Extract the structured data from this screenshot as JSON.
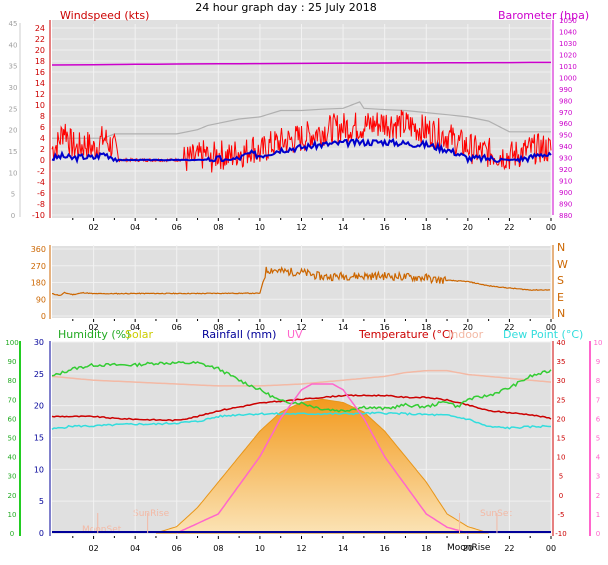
{
  "header": {
    "title": "24 hour graph day : 25 July 2018",
    "wind_label": "Windspeed (kts)",
    "baro_label": "Barometer (hpa)"
  },
  "colors": {
    "wind": "#ff0000",
    "gust_avg": "#0000cc",
    "baro": "#cc00cc",
    "gust_max": "#b0b0b0",
    "dir": "#cc6600",
    "humidity": "#33cc33",
    "solar": "#f5a623",
    "rain": "#000099",
    "uv": "#ff66cc",
    "temp": "#cc0000",
    "indoor": "#f3b9a5",
    "dew": "#33dddd"
  },
  "chart_data": [
    {
      "type": "line",
      "panel": "wind-barometer",
      "title": "24 hour graph day : 25 July 2018",
      "x_ticks": [
        "02",
        "04",
        "06",
        "08",
        "10",
        "12",
        "14",
        "16",
        "18",
        "20",
        "22",
        "00"
      ],
      "left_axis": {
        "label": "Windspeed (kts)",
        "ticks": [
          "24",
          "22",
          "20",
          "18",
          "16",
          "14",
          "12",
          "10",
          "8",
          "6",
          "4",
          "2",
          "0",
          "-2",
          "-4",
          "-6",
          "-8",
          "-10"
        ]
      },
      "left_axis_grey": {
        "ticks": [
          "45",
          "40",
          "35",
          "30",
          "25",
          "20",
          "15",
          "10",
          "5",
          "0"
        ]
      },
      "right_axis": {
        "label": "Barometer (hpa)",
        "ticks": [
          "1050",
          "1040",
          "1030",
          "1020",
          "1010",
          "1000",
          "990",
          "980",
          "970",
          "960",
          "950",
          "940",
          "930",
          "920",
          "910",
          "900",
          "890",
          "880"
        ]
      },
      "series": [
        {
          "name": "Windspeed (kts)",
          "color_key": "wind",
          "shape": [
            [
              0,
              2
            ],
            [
              0.3,
              3
            ],
            [
              0.6,
              6
            ],
            [
              0.9,
              3
            ],
            [
              1.2,
              2
            ],
            [
              1.6,
              3
            ],
            [
              2,
              2
            ],
            [
              2.5,
              4
            ],
            [
              3,
              2
            ],
            [
              3.2,
              0
            ],
            [
              3.5,
              0
            ],
            [
              5,
              0
            ],
            [
              6,
              0
            ],
            [
              7,
              0.3
            ],
            [
              7.4,
              1.2
            ],
            [
              7.6,
              0
            ],
            [
              8,
              1.2
            ],
            [
              8.5,
              0.5
            ],
            [
              9,
              1.6
            ],
            [
              9.3,
              1.2
            ],
            [
              9.6,
              2.5
            ],
            [
              10,
              1.2
            ],
            [
              10.4,
              2.5
            ],
            [
              11,
              3.2
            ],
            [
              12,
              4
            ],
            [
              13,
              5.3
            ],
            [
              14,
              6
            ],
            [
              15,
              6.2
            ],
            [
              16,
              6.8
            ],
            [
              17,
              6.4
            ],
            [
              18,
              5.4
            ],
            [
              19,
              4.4
            ],
            [
              19.6,
              3
            ],
            [
              20,
              2.4
            ],
            [
              20.5,
              1.5
            ],
            [
              21,
              1.3
            ],
            [
              22,
              0.7
            ],
            [
              22.5,
              1.2
            ],
            [
              23,
              1.9
            ],
            [
              23.6,
              2.1
            ],
            [
              24,
              1.9
            ]
          ]
        },
        {
          "name": "Average wind",
          "color_key": "gust_avg",
          "shape": [
            [
              0,
              0.3
            ],
            [
              0.5,
              0.7
            ],
            [
              1,
              0.3
            ],
            [
              1.5,
              0.6
            ],
            [
              2,
              0.4
            ],
            [
              2.5,
              1.2
            ],
            [
              3,
              0.4
            ],
            [
              3.2,
              0
            ],
            [
              4,
              0
            ],
            [
              5,
              0
            ],
            [
              6,
              0
            ],
            [
              7,
              0
            ],
            [
              8,
              0.2
            ],
            [
              8.5,
              0
            ],
            [
              9,
              0.3
            ],
            [
              9.5,
              1.2
            ],
            [
              10,
              0.8
            ],
            [
              11,
              1.9
            ],
            [
              12,
              2.3
            ],
            [
              13,
              2.8
            ],
            [
              14,
              3.1
            ],
            [
              15,
              3.2
            ],
            [
              16,
              3.3
            ],
            [
              17,
              3.0
            ],
            [
              18,
              2.8
            ],
            [
              19,
              1.9
            ],
            [
              19.5,
              1.2
            ],
            [
              20,
              0.3
            ],
            [
              21,
              0.3
            ],
            [
              22,
              0
            ],
            [
              23,
              0.4
            ],
            [
              23.5,
              1.2
            ],
            [
              24,
              0.7
            ]
          ]
        },
        {
          "name": "Barometer (hpa)",
          "color_key": "baro",
          "values_hpa": [
            1010.8,
            1010.9,
            1011.0,
            1011.2,
            1011.4,
            1011.5,
            1011.6,
            1011.7,
            1011.8,
            1011.9,
            1012.0,
            1012.1,
            1012.2,
            1012.3,
            1012.4,
            1012.4,
            1012.5,
            1012.6,
            1012.6,
            1012.7,
            1012.8,
            1012.9,
            1012.9,
            1013.0,
            1013.0
          ],
          "x_hours": [
            0,
            1,
            2,
            3,
            4,
            5,
            6,
            7,
            8,
            9,
            10,
            11,
            12,
            13,
            14,
            15,
            16,
            17,
            18,
            19,
            20,
            21,
            22,
            23,
            24
          ]
        },
        {
          "name": "Max gust (grey scale)",
          "color_key": "gust_max",
          "shape_grey": [
            [
              0,
              18
            ],
            [
              1.5,
              18
            ],
            [
              2.5,
              18
            ],
            [
              3,
              19
            ],
            [
              4,
              19
            ],
            [
              5,
              19
            ],
            [
              6,
              19
            ],
            [
              7,
              20
            ],
            [
              7.5,
              21
            ],
            [
              8,
              21.5
            ],
            [
              9,
              22.5
            ],
            [
              10,
              23
            ],
            [
              11,
              24.5
            ],
            [
              12,
              24.5
            ],
            [
              13,
              24.8
            ],
            [
              14,
              25
            ],
            [
              14.8,
              26.5
            ],
            [
              15,
              25
            ],
            [
              16,
              24.7
            ],
            [
              17,
              24.5
            ],
            [
              18,
              24
            ],
            [
              19,
              23.5
            ],
            [
              20,
              23
            ],
            [
              21,
              22
            ],
            [
              22,
              19.5
            ],
            [
              23,
              19.5
            ],
            [
              24,
              19.5
            ]
          ]
        }
      ]
    },
    {
      "type": "line",
      "panel": "wind-direction",
      "x_ticks": [
        "02",
        "04",
        "06",
        "08",
        "10",
        "12",
        "14",
        "16",
        "18",
        "20",
        "22",
        "00"
      ],
      "left_axis": {
        "ticks": [
          "360",
          "270",
          "180",
          "90",
          "0"
        ]
      },
      "right_axis": {
        "ticks": [
          "N",
          "W",
          "S",
          "E",
          "N"
        ]
      },
      "series": [
        {
          "name": "Wind direction",
          "color_key": "dir",
          "x_hours": [
            0,
            0.4,
            0.6,
            1,
            1.5,
            2,
            3,
            4,
            5,
            6,
            7,
            8,
            9,
            10,
            10.3,
            10.6,
            11,
            12,
            13,
            14,
            15,
            16,
            17,
            18,
            18.4,
            19,
            20,
            21,
            22,
            23,
            24
          ],
          "values_deg": [
            120,
            110,
            125,
            115,
            125,
            120,
            120,
            121,
            121,
            121,
            121,
            122,
            122,
            122,
            245,
            250,
            240,
            235,
            210,
            215,
            215,
            215,
            210,
            205,
            195,
            192,
            185,
            162,
            150,
            140,
            140
          ]
        }
      ]
    },
    {
      "type": "line",
      "panel": "weather-multi",
      "legend": [
        "Humidity (%)",
        "Solar",
        "Rainfall (mm)",
        "UV",
        "Temperature (°C)",
        "Indoor",
        "Dew Point (°C)"
      ],
      "x_ticks": [
        "02",
        "04",
        "06",
        "08",
        "10",
        "12",
        "14",
        "16",
        "18",
        "20",
        "22",
        "00"
      ],
      "left_axis_humidity": {
        "ticks": [
          "100",
          "90",
          "80",
          "70",
          "60",
          "50",
          "40",
          "30",
          "20",
          "10",
          "0"
        ]
      },
      "left_axis_rain": {
        "ticks": [
          "30",
          "25",
          "20",
          "15",
          "10",
          "5",
          "0"
        ]
      },
      "right_axis_temp": {
        "ticks": [
          "40",
          "35",
          "30",
          "25",
          "20",
          "15",
          "10",
          "5",
          "0",
          "-5",
          "-10"
        ]
      },
      "right_axis_uv": {
        "ticks": [
          "10",
          "9",
          "8",
          "7",
          "6",
          "5",
          "4",
          "3",
          "2",
          "1",
          "0"
        ]
      },
      "annotations": [
        "MoonSet",
        "SunRise",
        "MoonRise",
        "SunSet"
      ],
      "series": [
        {
          "name": "Humidity (%)",
          "color_key": "humidity",
          "x_hours": [
            0,
            1,
            2,
            3,
            4,
            5,
            6,
            7,
            8,
            9,
            10,
            11,
            12,
            13,
            14,
            15,
            16,
            17,
            18,
            19,
            19.5,
            20,
            21,
            22,
            23,
            24
          ],
          "values": [
            82,
            86,
            88,
            88,
            88,
            89,
            89,
            89,
            86,
            80,
            75,
            69,
            68,
            65,
            64,
            66,
            65,
            67,
            66,
            69,
            66,
            70,
            72,
            76,
            82,
            85
          ]
        },
        {
          "name": "Temperature (°C)",
          "color_key": "temp",
          "x_hours": [
            0,
            1,
            2,
            3,
            4,
            5,
            6,
            7,
            8,
            9,
            10,
            11,
            12,
            13,
            14,
            15,
            16,
            17,
            18,
            19,
            20,
            21,
            22,
            23,
            24
          ],
          "values": [
            20.5,
            20.5,
            20.5,
            20,
            19.8,
            19.6,
            19.5,
            20.5,
            22,
            23,
            24,
            24.5,
            25,
            25.5,
            26,
            26,
            26,
            25.5,
            25.5,
            24.8,
            23.5,
            22,
            21.5,
            21,
            20
          ]
        },
        {
          "name": "Indoor",
          "color_key": "indoor",
          "x_hours": [
            0,
            2,
            4,
            6,
            8,
            10,
            12,
            14,
            16,
            17,
            18,
            19,
            20,
            22,
            24
          ],
          "values": [
            31,
            30,
            29.5,
            29,
            28.5,
            28.5,
            29,
            30,
            31,
            32,
            32.5,
            32.5,
            31.5,
            30.5,
            29.5
          ]
        },
        {
          "name": "Dew Point (°C)",
          "color_key": "dew",
          "x_hours": [
            0,
            1,
            2,
            3,
            4,
            5,
            6,
            7,
            8,
            9,
            10,
            11,
            12,
            13,
            14,
            15,
            16,
            17,
            18,
            19,
            20,
            21,
            22,
            23,
            24
          ],
          "values": [
            17.2,
            18,
            18,
            18.3,
            18.5,
            18.5,
            18.8,
            19.2,
            20.5,
            21,
            21.2,
            21.2,
            21.2,
            21.2,
            21.2,
            21.3,
            21.4,
            21.2,
            21,
            20.8,
            19.8,
            17.8,
            17.5,
            17.8,
            18
          ]
        },
        {
          "name": "Solar",
          "color_key": "solar",
          "x_hours": [
            5,
            6,
            7,
            8,
            9,
            10,
            11,
            12,
            13,
            14,
            15,
            16,
            17,
            18,
            19,
            19.5,
            20,
            21
          ],
          "values": [
            0,
            1,
            4,
            8,
            12,
            16,
            19,
            20.5,
            21,
            20.5,
            19,
            16,
            12,
            8,
            3,
            2,
            1,
            0
          ]
        },
        {
          "name": "UV",
          "color_key": "uv",
          "x_hours": [
            6,
            8,
            9,
            10,
            11,
            12,
            12.5,
            13,
            13.5,
            14,
            15,
            16,
            17,
            18,
            19,
            20
          ],
          "values": [
            0,
            1,
            2.5,
            4,
            6,
            7.5,
            7.8,
            7.8,
            7.8,
            7.5,
            6,
            4,
            2.5,
            1,
            0.3,
            0
          ]
        }
      ]
    }
  ],
  "panel2_scale": {
    "n_label": "N",
    "w_label": "W",
    "s_label": "S",
    "e_label": "E"
  },
  "panel3_labels": {
    "humidity": "Humidity (%)",
    "solar": "Solar",
    "rain": "Rainfall (mm)",
    "uv": "UV",
    "temp": "Temperature (°C)",
    "indoor": "Indoor",
    "dew": "Dew Point (°C)"
  },
  "annotations": {
    "moonset": "MoonSet",
    "sunrise": "SunRise",
    "moonrise": "MoonRise",
    "sunset": "SunSet"
  }
}
